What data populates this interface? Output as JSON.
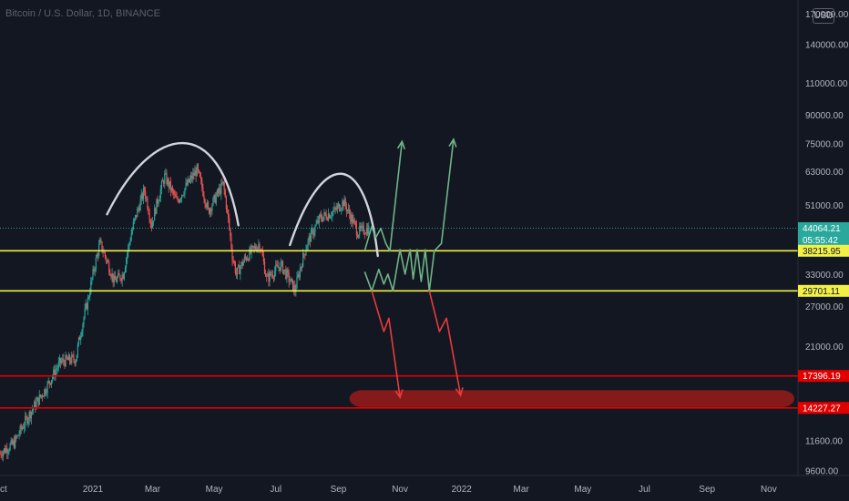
{
  "header": {
    "symbol_title": "Bitcoin / U.S. Dollar, 1D, BINANCE",
    "currency_badge": "USD"
  },
  "price_tags": {
    "current_price": "44064.21",
    "countdown": "05:55:42",
    "upper_level": "38215.95",
    "lower_level": "29701.11",
    "red_upper": "17396.19",
    "red_lower": "14227.27"
  },
  "colors": {
    "background": "#131722",
    "bull_candle": "#26a69a",
    "bear_candle": "#ef5350",
    "yellow_level": "#f2f047",
    "red_level": "#e00000",
    "green_path": "#6fb487",
    "red_path": "#e83b3b",
    "arc": "#d1d4dc",
    "red_zone": "#8b1a1a",
    "current_price_tag": "#2ba89c"
  },
  "chart_data": {
    "type": "candlestick",
    "title": "Bitcoin / U.S. Dollar, 1D, BINANCE",
    "y_scale": "log",
    "ylim": [
      9300,
      185000
    ],
    "y_ticks": [
      "170000.00",
      "140000.00",
      "110000.00",
      "90000.00",
      "75000.00",
      "63000.00",
      "51000.00",
      "33000.00",
      "27000.00",
      "21000.00",
      "11600.00",
      "9600.00"
    ],
    "x_ticks": [
      "ct",
      "2021",
      "Mar",
      "May",
      "Jul",
      "Sep",
      "Nov",
      "2022",
      "Mar",
      "May",
      "Jul",
      "Sep",
      "Nov"
    ],
    "x_range": [
      "2020-10-01",
      "2022-11-30"
    ],
    "price_path": [
      [
        "2020-10-01",
        10700
      ],
      [
        "2020-10-15",
        11400
      ],
      [
        "2020-10-31",
        13800
      ],
      [
        "2020-11-15",
        16000
      ],
      [
        "2020-11-30",
        19000
      ],
      [
        "2020-12-15",
        19400
      ],
      [
        "2020-12-27",
        28000
      ],
      [
        "2021-01-08",
        40000
      ],
      [
        "2021-01-22",
        31500
      ],
      [
        "2021-01-31",
        33000
      ],
      [
        "2021-02-10",
        45000
      ],
      [
        "2021-02-21",
        56000
      ],
      [
        "2021-02-28",
        45000
      ],
      [
        "2021-03-13",
        61000
      ],
      [
        "2021-03-25",
        52000
      ],
      [
        "2021-04-14",
        63500
      ],
      [
        "2021-04-25",
        49000
      ],
      [
        "2021-05-10",
        58000
      ],
      [
        "2021-05-19",
        37000
      ],
      [
        "2021-05-23",
        33000
      ],
      [
        "2021-06-01",
        36500
      ],
      [
        "2021-06-15",
        40000
      ],
      [
        "2021-06-22",
        32000
      ],
      [
        "2021-07-06",
        35000
      ],
      [
        "2021-07-20",
        29800
      ],
      [
        "2021-08-01",
        40000
      ],
      [
        "2021-08-14",
        47000
      ],
      [
        "2021-08-28",
        49000
      ],
      [
        "2021-09-06",
        52000
      ],
      [
        "2021-09-20",
        43000
      ],
      [
        "2021-10-01",
        44000
      ]
    ],
    "horizontal_levels": [
      {
        "label": "38215.95",
        "value": 38215.95,
        "color": "yellow"
      },
      {
        "label": "29701.11",
        "value": 29701.11,
        "color": "yellow"
      },
      {
        "label": "17396.19",
        "value": 17396.19,
        "color": "red"
      },
      {
        "label": "14227.27",
        "value": 14227.27,
        "color": "red"
      }
    ],
    "current_price": 44064.21,
    "annotations": {
      "arcs": [
        {
          "from": "2021-01-15",
          "to": "2021-05-25",
          "peak_value": 74000
        },
        {
          "from": "2021-07-15",
          "to": "2021-10-10",
          "peak_value": 61000
        }
      ],
      "green_projection_paths": [
        [
          [
            "2021-09-27",
            38200
          ],
          [
            "2021-10-04",
            44500
          ],
          [
            "2021-10-08",
            41500
          ],
          [
            "2021-10-13",
            44000
          ],
          [
            "2021-10-18",
            40000
          ],
          [
            "2021-10-22",
            38200
          ],
          [
            "2021-11-03",
            76000
          ]
        ],
        [
          [
            "2021-09-27",
            33500
          ],
          [
            "2021-10-04",
            29701
          ],
          [
            "2021-10-11",
            34000
          ],
          [
            "2021-10-16",
            31000
          ],
          [
            "2021-10-20",
            33000
          ],
          [
            "2021-10-25",
            29701
          ],
          [
            "2021-11-01",
            38500
          ],
          [
            "2021-11-06",
            33000
          ],
          [
            "2021-11-11",
            38500
          ],
          [
            "2021-11-14",
            32000
          ],
          [
            "2021-11-18",
            38500
          ],
          [
            "2021-11-22",
            31500
          ],
          [
            "2021-11-26",
            38500
          ],
          [
            "2021-11-30",
            29701
          ],
          [
            "2021-12-05",
            38200
          ],
          [
            "2021-12-12",
            40000
          ],
          [
            "2021-12-24",
            77000
          ]
        ]
      ],
      "red_projection_paths": [
        [
          [
            "2021-10-04",
            29701
          ],
          [
            "2021-10-16",
            23000
          ],
          [
            "2021-10-21",
            25000
          ],
          [
            "2021-11-01",
            15200
          ]
        ],
        [
          [
            "2021-11-30",
            29701
          ],
          [
            "2021-12-10",
            23000
          ],
          [
            "2021-12-17",
            25000
          ],
          [
            "2021-12-31",
            15400
          ]
        ]
      ],
      "red_zone": {
        "from": "2021-09-12",
        "to": "2022-11-30",
        "low": 14300,
        "high": 15900
      }
    }
  }
}
